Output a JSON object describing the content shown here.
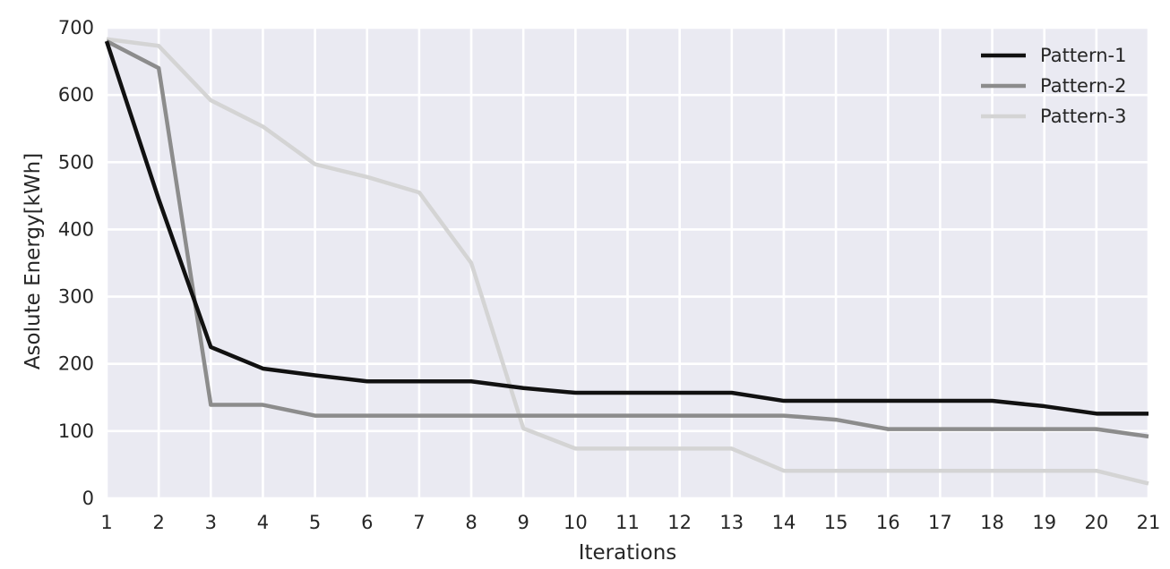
{
  "chart_data": {
    "type": "line",
    "title": "",
    "xlabel": "Iterations",
    "ylabel": "Asolute Energy[kWh]",
    "x": [
      1,
      2,
      3,
      4,
      5,
      6,
      7,
      8,
      9,
      10,
      11,
      12,
      13,
      14,
      15,
      16,
      17,
      18,
      19,
      20,
      21
    ],
    "xticks": [
      "1",
      "2",
      "3",
      "4",
      "5",
      "6",
      "7",
      "8",
      "9",
      "10",
      "11",
      "12",
      "13",
      "14",
      "15",
      "16",
      "17",
      "18",
      "19",
      "20",
      "21"
    ],
    "xlim": [
      1,
      21
    ],
    "ylim": [
      0,
      700
    ],
    "yticks": [
      "0",
      "100",
      "200",
      "300",
      "400",
      "500",
      "600",
      "700"
    ],
    "grid": true,
    "legend_position": "top-right",
    "background_color": "#eaeaf2",
    "grid_color": "#ffffff",
    "series": [
      {
        "name": "Pattern-1",
        "color": "#111111",
        "values": [
          680,
          445,
          225,
          193,
          183,
          174,
          174,
          174,
          164,
          157,
          157,
          157,
          157,
          145,
          145,
          145,
          145,
          145,
          137,
          126,
          126
        ]
      },
      {
        "name": "Pattern-2",
        "color": "#8c8c8c",
        "values": [
          680,
          640,
          139,
          139,
          123,
          123,
          123,
          123,
          123,
          123,
          123,
          123,
          123,
          123,
          117,
          103,
          103,
          103,
          103,
          103,
          92
        ]
      },
      {
        "name": "Pattern-3",
        "color": "#d4d4d4",
        "values": [
          683,
          673,
          592,
          553,
          497,
          478,
          455,
          350,
          104,
          74,
          74,
          74,
          74,
          41,
          41,
          41,
          41,
          41,
          41,
          41,
          22
        ]
      }
    ]
  }
}
